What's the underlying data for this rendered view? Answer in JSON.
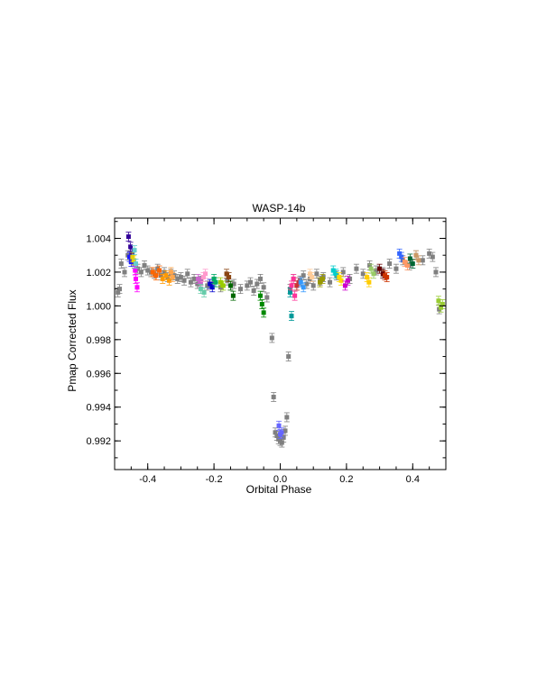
{
  "chart_data": {
    "type": "scatter",
    "title": "WASP-14b",
    "xlabel": "Orbital Phase",
    "ylabel": "Pmap Corrected Flux",
    "xlim": [
      -0.5,
      0.5
    ],
    "ylim": [
      0.9903,
      1.0052
    ],
    "x_ticks": [
      -0.4,
      -0.2,
      0.0,
      0.2,
      0.4
    ],
    "x_tick_labels": [
      "-0.4",
      "-0.2",
      "0.0",
      "0.2",
      "0.4"
    ],
    "y_ticks": [
      0.992,
      0.994,
      0.996,
      0.998,
      1.0,
      1.002,
      1.004
    ],
    "y_tick_labels": [
      "0.992",
      "0.994",
      "0.996",
      "0.998",
      "1.000",
      "1.002",
      "1.004"
    ],
    "grid": false,
    "error_bars": true,
    "series": [
      {
        "color": "#808080",
        "x": [
          -0.49,
          -0.485,
          -0.48,
          -0.47,
          -0.46,
          -0.45,
          -0.44,
          -0.43,
          -0.42,
          -0.41,
          -0.4,
          -0.39,
          -0.38,
          -0.37,
          -0.36,
          -0.35,
          -0.34,
          -0.33,
          -0.32,
          -0.31,
          -0.3,
          -0.29,
          -0.28,
          -0.27,
          -0.26,
          -0.25,
          -0.24,
          -0.22,
          -0.2,
          -0.18,
          -0.16,
          -0.14,
          -0.12,
          -0.1,
          -0.09,
          -0.08,
          -0.07,
          -0.06,
          -0.05,
          -0.04,
          -0.025,
          -0.02,
          -0.015,
          -0.01,
          -0.005,
          0.0,
          0.005,
          0.01,
          0.015,
          0.02,
          0.025,
          0.03,
          0.04,
          0.05,
          0.06,
          0.07,
          0.08,
          0.09,
          0.1,
          0.11,
          0.12,
          0.13,
          0.15,
          0.17,
          0.19,
          0.21,
          0.23,
          0.25,
          0.27,
          0.29,
          0.31,
          0.33,
          0.35,
          0.37,
          0.39,
          0.41,
          0.43,
          0.45,
          0.46,
          0.47,
          0.48
        ],
        "y": [
          1.0008,
          1.001,
          1.0025,
          1.002,
          1.003,
          1.0028,
          1.0025,
          1.0022,
          1.002,
          1.0024,
          1.0021,
          1.002,
          1.0019,
          1.0022,
          1.0018,
          1.002,
          1.0017,
          1.0019,
          1.0018,
          1.0016,
          1.0017,
          1.0015,
          1.0019,
          1.0014,
          1.0016,
          1.0013,
          1.0015,
          1.0012,
          1.0014,
          1.0011,
          1.0015,
          1.0013,
          1.001,
          1.0012,
          1.0014,
          1.0009,
          1.0013,
          1.0016,
          1.0011,
          1.0005,
          0.9981,
          0.9946,
          0.9925,
          0.9923,
          0.9921,
          0.992,
          0.9919,
          0.9922,
          0.9926,
          0.9934,
          0.997,
          1.001,
          1.0016,
          1.0012,
          1.0015,
          1.0018,
          1.0013,
          1.0016,
          1.0012,
          1.0019,
          1.0015,
          1.0017,
          1.0014,
          1.0018,
          1.002,
          1.0016,
          1.0022,
          1.0019,
          1.0024,
          1.0021,
          1.002,
          1.0025,
          1.0022,
          1.0027,
          1.0024,
          1.003,
          1.0027,
          1.0031,
          1.0029,
          1.002,
          0.9998
        ]
      },
      {
        "color": "#330099",
        "x": [
          -0.458,
          -0.452,
          -0.448
        ],
        "y": [
          1.0041,
          1.0035,
          1.0031
        ]
      },
      {
        "color": "#1a1aff",
        "x": [
          -0.455,
          -0.45
        ],
        "y": [
          1.0029,
          1.0026
        ]
      },
      {
        "color": "#ff00ff",
        "x": [
          -0.438,
          -0.436,
          -0.432
        ],
        "y": [
          1.0021,
          1.0016,
          1.0011
        ]
      },
      {
        "color": "#e8d000",
        "x": [
          -0.446,
          -0.442
        ],
        "y": [
          1.0029,
          1.0027
        ]
      },
      {
        "color": "#66cccc",
        "x": [
          -0.44,
          -0.436
        ],
        "y": [
          1.0033,
          1.0025
        ]
      },
      {
        "color": "#ff6600",
        "x": [
          -0.385,
          -0.375,
          -0.365
        ],
        "y": [
          1.002,
          1.0018,
          1.0021
        ]
      },
      {
        "color": "#ff9900",
        "x": [
          -0.355,
          -0.345,
          -0.335
        ],
        "y": [
          1.0016,
          1.0018,
          1.0015
        ]
      },
      {
        "color": "#ffa64d",
        "x": [
          -0.33,
          -0.325
        ],
        "y": [
          1.002,
          1.0017
        ]
      },
      {
        "color": "#cc66cc",
        "x": [
          -0.248,
          -0.24
        ],
        "y": [
          1.0016,
          1.0014
        ]
      },
      {
        "color": "#66ccaa",
        "x": [
          -0.24,
          -0.23
        ],
        "y": [
          1.001,
          1.0008
        ]
      },
      {
        "color": "#ff99cc",
        "x": [
          -0.232,
          -0.226
        ],
        "y": [
          1.0017,
          1.0019
        ]
      },
      {
        "color": "#0000cc",
        "x": [
          -0.212,
          -0.205
        ],
        "y": [
          1.0013,
          1.0011
        ]
      },
      {
        "color": "#00aa66",
        "x": [
          -0.2,
          -0.195
        ],
        "y": [
          1.0016,
          1.0014
        ]
      },
      {
        "color": "#99cc00",
        "x": [
          -0.18,
          -0.172
        ],
        "y": [
          1.0014,
          1.0012
        ]
      },
      {
        "color": "#8b4513",
        "x": [
          -0.162,
          -0.155
        ],
        "y": [
          1.0019,
          1.0017
        ]
      },
      {
        "color": "#006600",
        "x": [
          -0.15,
          -0.142
        ],
        "y": [
          1.0012,
          1.0006
        ]
      },
      {
        "color": "#008800",
        "x": [
          -0.06,
          -0.055,
          -0.05
        ],
        "y": [
          1.0006,
          1.0001,
          0.9996
        ]
      },
      {
        "color": "#6666ff",
        "x": [
          -0.004,
          0.0,
          0.004
        ],
        "y": [
          0.9929,
          0.9924,
          0.9925
        ]
      },
      {
        "color": "#009999",
        "x": [
          0.03,
          0.034
        ],
        "y": [
          1.0008,
          0.9994
        ]
      },
      {
        "color": "#ff3399",
        "x": [
          0.034,
          0.04,
          0.044
        ],
        "y": [
          1.0012,
          1.0016,
          1.0006
        ]
      },
      {
        "color": "#cc3333",
        "x": [
          0.05,
          0.056
        ],
        "y": [
          1.0012,
          1.0014
        ]
      },
      {
        "color": "#3399ff",
        "x": [
          0.062,
          0.07
        ],
        "y": [
          1.0014,
          1.0011
        ]
      },
      {
        "color": "#ffcc99",
        "x": [
          0.09,
          0.096
        ],
        "y": [
          1.0019,
          1.0017
        ]
      },
      {
        "color": "#999900",
        "x": [
          0.12,
          0.128
        ],
        "y": [
          1.0014,
          1.0016
        ]
      },
      {
        "color": "#00cccc",
        "x": [
          0.16,
          0.168
        ],
        "y": [
          1.0021,
          1.0019
        ]
      },
      {
        "color": "#ffd700",
        "x": [
          0.178,
          0.184
        ],
        "y": [
          1.0017,
          1.0015
        ]
      },
      {
        "color": "#cc00cc",
        "x": [
          0.196,
          0.204
        ],
        "y": [
          1.0012,
          1.0015
        ]
      },
      {
        "color": "#ffcc00",
        "x": [
          0.262,
          0.268
        ],
        "y": [
          1.0017,
          1.0014
        ]
      },
      {
        "color": "#99cc66",
        "x": [
          0.274,
          0.282
        ],
        "y": [
          1.0022,
          1.0019
        ]
      },
      {
        "color": "#660000",
        "x": [
          0.3,
          0.31
        ],
        "y": [
          1.0022,
          1.0019
        ]
      },
      {
        "color": "#cc3300",
        "x": [
          0.316,
          0.322
        ],
        "y": [
          1.0018,
          1.0017
        ]
      },
      {
        "color": "#3366ff",
        "x": [
          0.36,
          0.366
        ],
        "y": [
          1.0031,
          1.0029
        ]
      },
      {
        "color": "#ff9966",
        "x": [
          0.376,
          0.384
        ],
        "y": [
          1.0026,
          1.0024
        ]
      },
      {
        "color": "#006633",
        "x": [
          0.392,
          0.4
        ],
        "y": [
          1.0028,
          1.0025
        ]
      },
      {
        "color": "#cc9966",
        "x": [
          0.41,
          0.418
        ],
        "y": [
          1.003,
          1.0027
        ]
      },
      {
        "color": "#99cc33",
        "x": [
          0.478,
          0.485,
          0.49
        ],
        "y": [
          1.0003,
          0.9999,
          1.0001
        ]
      }
    ]
  }
}
